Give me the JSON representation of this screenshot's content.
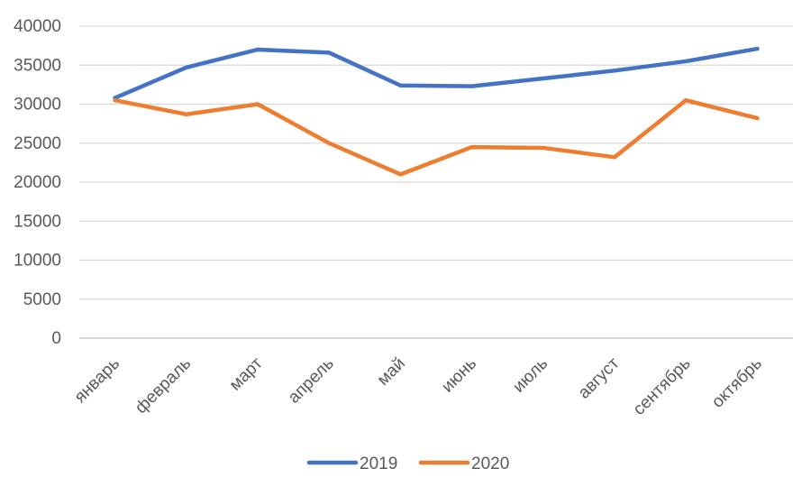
{
  "chart_data": {
    "type": "line",
    "categories": [
      "январь",
      "февраль",
      "март",
      "апрель",
      "май",
      "июнь",
      "июль",
      "август",
      "сентябрь",
      "октябрь"
    ],
    "series": [
      {
        "name": "2019",
        "color": "#4472C4",
        "values": [
          30800,
          34700,
          37000,
          36600,
          32400,
          32300,
          33300,
          34300,
          35500,
          37100
        ]
      },
      {
        "name": "2020",
        "color": "#ED7D31",
        "values": [
          30500,
          28700,
          30000,
          25000,
          21000,
          24500,
          24400,
          23200,
          30500,
          28200
        ]
      }
    ],
    "y_ticks": [
      "0",
      "5000",
      "10000",
      "15000",
      "20000",
      "25000",
      "30000",
      "35000",
      "40000"
    ],
    "ylim": [
      0,
      40000
    ],
    "grid": true,
    "legend_position": "bottom"
  }
}
